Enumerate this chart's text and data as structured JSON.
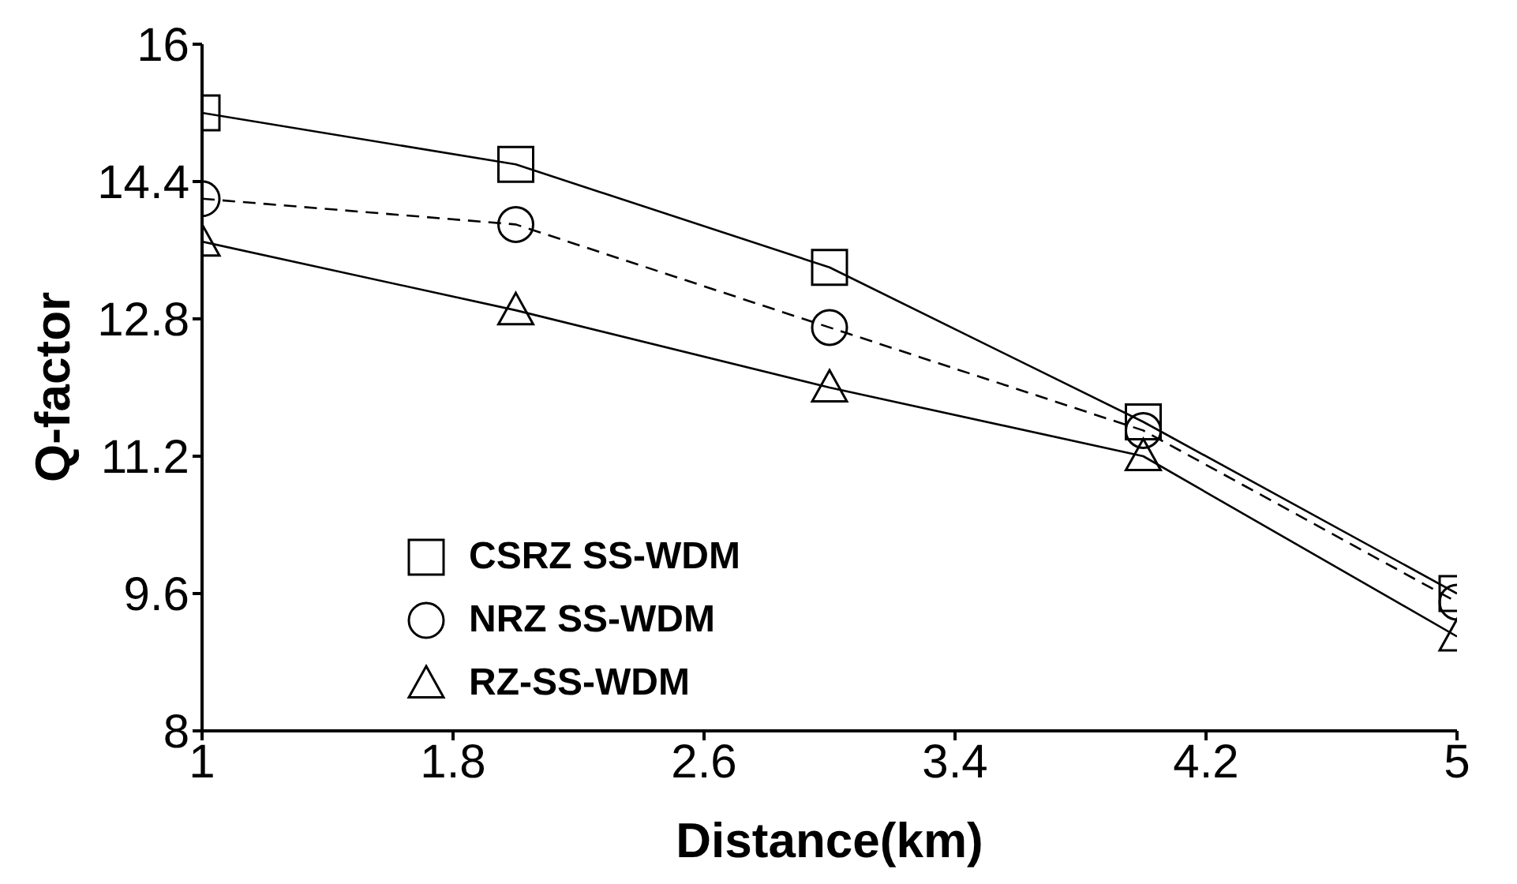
{
  "chart_data": {
    "type": "line",
    "xlabel": "Distance(km)",
    "ylabel": "Q-factor",
    "x": [
      1,
      2,
      3,
      4,
      5
    ],
    "xlim": [
      1,
      5
    ],
    "xticks": [
      1,
      1.8,
      2.6,
      3.4,
      4.2,
      5
    ],
    "ylim": [
      8,
      16
    ],
    "yticks": [
      8,
      9.6,
      11.2,
      12.8,
      14.4,
      16
    ],
    "grid": false,
    "legend": "bottom left",
    "series": [
      {
        "name": "CSRZ SS-WDM",
        "color": "#000000",
        "marker": "square",
        "line_style": "solid",
        "values": [
          15.2,
          14.6,
          13.4,
          11.6,
          9.6
        ]
      },
      {
        "name": "NRZ SS-WDM",
        "color": "#000000",
        "marker": "circle",
        "line_style": "dashed",
        "values": [
          14.2,
          13.9,
          12.7,
          11.5,
          9.5
        ]
      },
      {
        "name": "RZ-SS-WDM",
        "color": "#000000",
        "marker": "triangle",
        "line_style": "solid",
        "values": [
          13.7,
          12.9,
          12.0,
          11.2,
          9.1
        ]
      }
    ]
  }
}
